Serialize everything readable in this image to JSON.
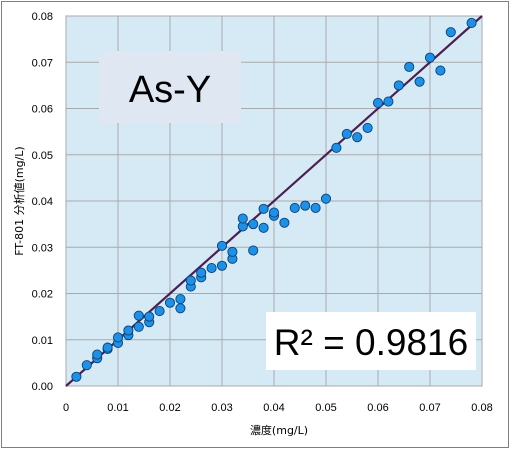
{
  "chart_data": {
    "type": "scatter",
    "title": "As-Y",
    "annotation": "R² = 0.9816",
    "xlabel": "濃度(mg/L)",
    "ylabel": "FT-801 分析値(mg/L)",
    "xlim": [
      0,
      0.08
    ],
    "ylim": [
      0,
      0.08
    ],
    "xticks": [
      "0",
      "0.01",
      "0.02",
      "0.03",
      "0.04",
      "0.05",
      "0.06",
      "0.07",
      "0.08"
    ],
    "yticks": [
      "0.00",
      "0.01",
      "0.02",
      "0.03",
      "0.04",
      "0.05",
      "0.06",
      "0.07",
      "0.08"
    ],
    "grid": true,
    "colors": {
      "plot_bg": "#d6eaf6",
      "grid": "#a9a9a9",
      "point_fill": "#1e90e6",
      "point_stroke": "#08427a",
      "fit_line": "#4b1f54",
      "label_box": "#dfe8f2"
    },
    "fit_line": {
      "x": [
        0,
        0.08
      ],
      "y": [
        0,
        0.08
      ]
    },
    "points": [
      {
        "x": 0.002,
        "y": 0.002
      },
      {
        "x": 0.004,
        "y": 0.0045
      },
      {
        "x": 0.006,
        "y": 0.006
      },
      {
        "x": 0.006,
        "y": 0.0068
      },
      {
        "x": 0.008,
        "y": 0.008
      },
      {
        "x": 0.008,
        "y": 0.0083
      },
      {
        "x": 0.01,
        "y": 0.0093
      },
      {
        "x": 0.01,
        "y": 0.0105
      },
      {
        "x": 0.012,
        "y": 0.011
      },
      {
        "x": 0.012,
        "y": 0.012
      },
      {
        "x": 0.014,
        "y": 0.0128
      },
      {
        "x": 0.014,
        "y": 0.0152
      },
      {
        "x": 0.016,
        "y": 0.0138
      },
      {
        "x": 0.016,
        "y": 0.015
      },
      {
        "x": 0.018,
        "y": 0.0162
      },
      {
        "x": 0.02,
        "y": 0.018
      },
      {
        "x": 0.022,
        "y": 0.0168
      },
      {
        "x": 0.022,
        "y": 0.0188
      },
      {
        "x": 0.024,
        "y": 0.0215
      },
      {
        "x": 0.024,
        "y": 0.0228
      },
      {
        "x": 0.026,
        "y": 0.0235
      },
      {
        "x": 0.026,
        "y": 0.0245
      },
      {
        "x": 0.028,
        "y": 0.0255
      },
      {
        "x": 0.03,
        "y": 0.026
      },
      {
        "x": 0.03,
        "y": 0.0303
      },
      {
        "x": 0.032,
        "y": 0.0275
      },
      {
        "x": 0.032,
        "y": 0.029
      },
      {
        "x": 0.034,
        "y": 0.0345
      },
      {
        "x": 0.034,
        "y": 0.0362
      },
      {
        "x": 0.036,
        "y": 0.0293
      },
      {
        "x": 0.036,
        "y": 0.035
      },
      {
        "x": 0.038,
        "y": 0.0342
      },
      {
        "x": 0.038,
        "y": 0.0383
      },
      {
        "x": 0.04,
        "y": 0.0368
      },
      {
        "x": 0.04,
        "y": 0.0375
      },
      {
        "x": 0.042,
        "y": 0.0353
      },
      {
        "x": 0.044,
        "y": 0.0385
      },
      {
        "x": 0.046,
        "y": 0.039
      },
      {
        "x": 0.048,
        "y": 0.0385
      },
      {
        "x": 0.05,
        "y": 0.0405
      },
      {
        "x": 0.052,
        "y": 0.0515
      },
      {
        "x": 0.054,
        "y": 0.0545
      },
      {
        "x": 0.056,
        "y": 0.0538
      },
      {
        "x": 0.058,
        "y": 0.0558
      },
      {
        "x": 0.06,
        "y": 0.0612
      },
      {
        "x": 0.062,
        "y": 0.0615
      },
      {
        "x": 0.064,
        "y": 0.065
      },
      {
        "x": 0.066,
        "y": 0.069
      },
      {
        "x": 0.068,
        "y": 0.0658
      },
      {
        "x": 0.07,
        "y": 0.071
      },
      {
        "x": 0.072,
        "y": 0.0682
      },
      {
        "x": 0.074,
        "y": 0.0765
      },
      {
        "x": 0.078,
        "y": 0.0785
      }
    ]
  }
}
